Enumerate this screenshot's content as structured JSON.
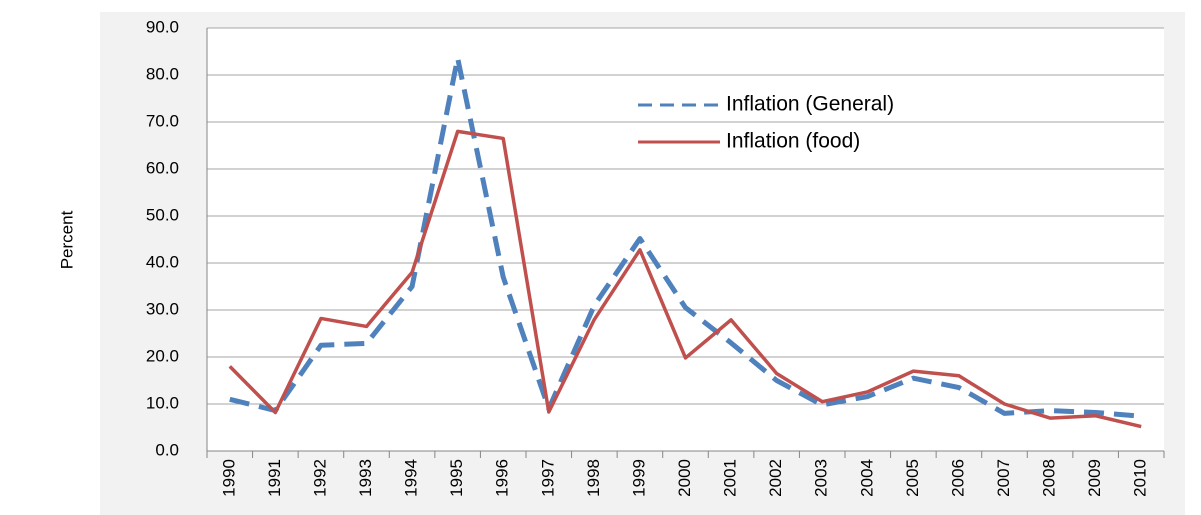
{
  "chart_data": {
    "type": "line",
    "y_label": "Percent",
    "categories": [
      "1990",
      "1991",
      "1992",
      "1993",
      "1994",
      "1995",
      "1996",
      "1997",
      "1998",
      "1999",
      "2000",
      "2001",
      "2002",
      "2003",
      "2004",
      "2005",
      "2006",
      "2007",
      "2008",
      "2009",
      "2010"
    ],
    "series": [
      {
        "name": "Inflation (General)",
        "color": "#4f81bd",
        "dashed": true,
        "values": [
          11,
          8.6,
          22.5,
          22.9,
          35,
          83.6,
          37,
          9,
          31,
          45.2,
          30.5,
          23,
          15,
          9.8,
          11.6,
          15.5,
          13.5,
          8,
          8.6,
          8.2,
          7.4
        ]
      },
      {
        "name": "Inflation (food)",
        "color": "#c0504d",
        "dashed": false,
        "values": [
          18,
          8.2,
          28.2,
          26.5,
          38,
          68,
          66.5,
          8.3,
          28,
          42.8,
          19.8,
          27.9,
          16.5,
          10.5,
          12.6,
          17,
          16,
          10,
          7,
          7.5,
          5.2
        ]
      }
    ],
    "ylim": [
      0,
      90
    ],
    "yticks": [
      {
        "value": 0,
        "label": "0.0"
      },
      {
        "value": 10,
        "label": "10.0"
      },
      {
        "value": 20,
        "label": "20.0"
      },
      {
        "value": 30,
        "label": "30.0"
      },
      {
        "value": 40,
        "label": "40.0"
      },
      {
        "value": 50,
        "label": "50.0"
      },
      {
        "value": 60,
        "label": "60.0"
      },
      {
        "value": 70,
        "label": "70.0"
      },
      {
        "value": 80,
        "label": "80.0"
      },
      {
        "value": 90,
        "label": "90.0"
      }
    ],
    "grid": true,
    "legend": "upper-center"
  }
}
